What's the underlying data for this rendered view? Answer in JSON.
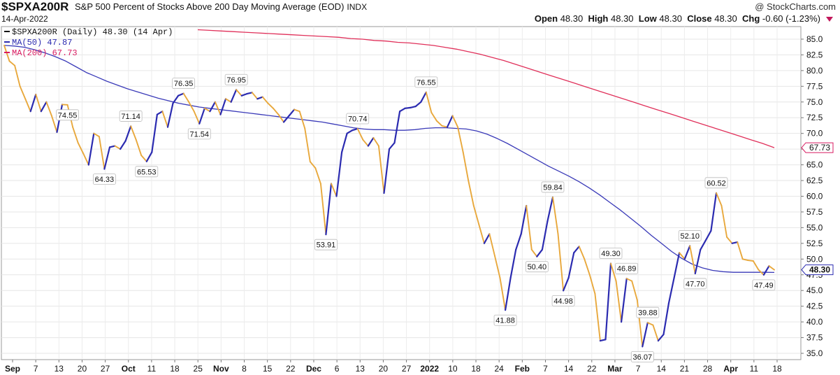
{
  "header": {
    "symbol": "$SPXA200R",
    "description": "S&P 500 Percent of Stocks Above 200 Day Moving Average (EOD)",
    "exchange": "INDX",
    "date": "14-Apr-2022",
    "brand": "@ StockCharts.com",
    "open_label": "Open",
    "open": "48.30",
    "high_label": "High",
    "high": "48.30",
    "low_label": "Low",
    "low": "48.30",
    "close_label": "Close",
    "close": "48.30",
    "chg_label": "Chg",
    "chg": "-0.60 (-1.23%)"
  },
  "legend": [
    {
      "text": "$SPXA200R (Daily) 48.30 (14 Apr)",
      "color": "#111111",
      "icon": "line-icon"
    },
    {
      "text": "MA(50) 47.87",
      "color": "#2b2bb0",
      "icon": "line-icon"
    },
    {
      "text": "MA(200) 67.73",
      "color": "#d81b60",
      "icon": "line-icon"
    }
  ],
  "colors": {
    "up": "#2b2bb0",
    "down": "#e8a83c",
    "ma50": "#3a3ab8",
    "ma200": "#e0305a"
  },
  "chart_data": {
    "type": "line",
    "title": "S&P 500 Percent of Stocks Above 200 Day Moving Average (EOD)",
    "x_tick_labels": [
      "Sep",
      "7",
      "13",
      "20",
      "27",
      "Oct",
      "11",
      "18",
      "25",
      "Nov",
      "8",
      "15",
      "22",
      "Dec",
      "6",
      "13",
      "20",
      "27",
      "2022",
      "10",
      "18",
      "24",
      "Feb",
      "7",
      "14",
      "22",
      "Mar",
      "7",
      "14",
      "21",
      "28",
      "Apr",
      "11",
      "18"
    ],
    "ylim": [
      34,
      87
    ],
    "yticks": [
      35.0,
      37.5,
      40.0,
      42.5,
      45.0,
      47.5,
      50.0,
      52.5,
      55.0,
      57.5,
      60.0,
      62.5,
      65.0,
      67.5,
      70.0,
      72.5,
      75.0,
      77.5,
      80.0,
      82.5,
      85.0
    ],
    "grid": true,
    "legend_position": "top-left",
    "series": [
      {
        "name": "$SPXA200R",
        "values": [
          84.0,
          81.5,
          80.8,
          77.5,
          75.5,
          73.5,
          76.2,
          73.5,
          75.0,
          72.8,
          70.2,
          74.6,
          74.55,
          71.0,
          68.5,
          66.8,
          65.0,
          70.0,
          69.5,
          64.33,
          67.8,
          68.0,
          67.5,
          68.8,
          71.14,
          69.0,
          66.5,
          65.53,
          67.0,
          73.0,
          73.5,
          71.0,
          74.8,
          76.0,
          76.35,
          75.0,
          73.5,
          71.54,
          74.0,
          73.5,
          75.0,
          73.0,
          75.5,
          75.0,
          76.95,
          76.0,
          76.3,
          76.5,
          75.5,
          75.8,
          74.8,
          74.0,
          73.0,
          71.8,
          72.8,
          73.8,
          73.5,
          70.8,
          65.5,
          64.5,
          62.0,
          53.91,
          62.0,
          60.0,
          67.0,
          70.0,
          70.5,
          70.74,
          69.0,
          68.0,
          69.3,
          68.0,
          60.5,
          67.5,
          68.5,
          73.5,
          74.0,
          74.1,
          74.3,
          75.0,
          76.55,
          73.3,
          72.0,
          71.2,
          71.0,
          72.8,
          71.0,
          67.0,
          62.5,
          58.5,
          55.5,
          52.5,
          54.0,
          50.5,
          47.0,
          41.88,
          47.0,
          51.5,
          54.0,
          58.5,
          51.5,
          50.4,
          51.5,
          56.0,
          59.84,
          54.0,
          44.98,
          47.0,
          51.0,
          52.0,
          50.0,
          47.5,
          44.5,
          37.0,
          37.2,
          49.3,
          46.5,
          40.0,
          46.89,
          46.5,
          43.5,
          36.07,
          39.88,
          39.5,
          37.0,
          38.0,
          43.0,
          47.0,
          51.0,
          50.0,
          52.1,
          47.7,
          51.5,
          53.0,
          54.5,
          60.52,
          58.5,
          53.5,
          52.5,
          52.7,
          50.0,
          49.8,
          49.7,
          48.3,
          47.49,
          48.9,
          48.3
        ]
      },
      {
        "name": "MA(50)",
        "values": [
          84.0,
          83.9,
          83.7,
          83.3,
          82.8,
          82.2,
          81.5,
          80.6,
          79.7,
          79.0,
          78.3,
          77.7,
          77.1,
          76.6,
          76.1,
          75.6,
          75.2,
          74.8,
          74.5,
          74.2,
          74.0,
          73.8,
          73.6,
          73.4,
          73.2,
          73.0,
          72.8,
          72.6,
          72.4,
          72.2,
          72.0,
          71.8,
          71.5,
          71.2,
          70.9,
          70.7,
          70.6,
          70.6,
          70.5,
          70.5,
          70.6,
          70.8,
          70.9,
          70.9,
          70.8,
          70.7,
          70.4,
          69.9,
          69.2,
          68.4,
          67.5,
          66.6,
          65.7,
          64.8,
          64.0,
          63.2,
          62.3,
          61.3,
          60.2,
          59.0,
          57.8,
          56.5,
          55.2,
          53.8,
          52.5,
          51.2,
          50.1,
          49.2,
          48.6,
          48.2,
          48.0,
          47.9,
          47.9,
          47.9,
          47.9,
          47.87
        ]
      },
      {
        "name": "MA(200)",
        "values": [
          86.5,
          86.4,
          86.3,
          86.2,
          86.1,
          86.0,
          85.9,
          85.8,
          85.7,
          85.6,
          85.5,
          85.4,
          85.3,
          85.1,
          85.0,
          84.8,
          84.7,
          84.5,
          84.4,
          84.2,
          84.0,
          83.7,
          83.4,
          83.0,
          82.6,
          82.1,
          81.6,
          81.0,
          80.4,
          79.8,
          79.2,
          78.6,
          78.0,
          77.4,
          76.8,
          76.2,
          75.6,
          75.0,
          74.4,
          73.8,
          73.2,
          72.6,
          72.0,
          71.4,
          70.8,
          70.2,
          69.6,
          69.0,
          68.4,
          67.73
        ]
      }
    ],
    "data_labels": [
      "74.55",
      "64.33",
      "71.14",
      "65.53",
      "76.35",
      "71.54",
      "76.95",
      "53.91",
      "70.74",
      "76.55",
      "41.88",
      "59.84",
      "50.40",
      "44.98",
      "49.30",
      "46.89",
      "39.88",
      "36.07",
      "52.10",
      "47.70",
      "60.52",
      "47.49"
    ],
    "last_value_labels": [
      {
        "text": "48.30",
        "color": "#2b2bb0"
      },
      {
        "text": "67.73",
        "color": "#d81b60"
      }
    ]
  }
}
